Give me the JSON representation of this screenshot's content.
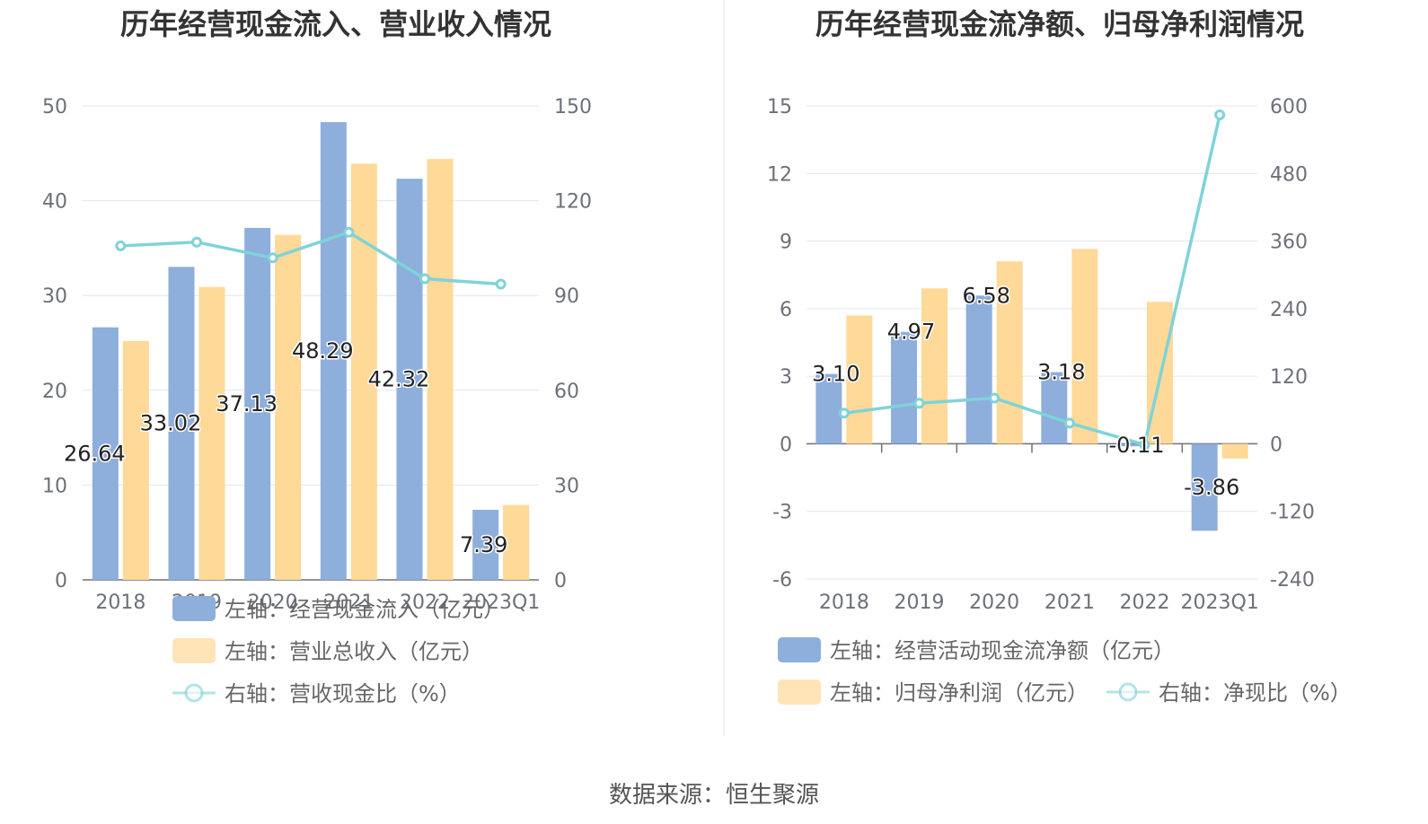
{
  "source": "数据来源：恒生聚源",
  "chart_data": [
    {
      "type": "bar",
      "title": "历年经营现金流入、营业收入情况",
      "categories": [
        "2018",
        "2019",
        "2020",
        "2021",
        "2022",
        "2023Q1"
      ],
      "left_axis": {
        "min": 0,
        "max": 50,
        "ticks": [
          "0",
          "10",
          "20",
          "30",
          "40",
          "50"
        ]
      },
      "right_axis": {
        "min": 0,
        "max": 150,
        "ticks": [
          "0",
          "30",
          "60",
          "90",
          "120",
          "150"
        ]
      },
      "grid": true,
      "legend_position": "bottom",
      "series": [
        {
          "name": "左轴：经营现金流入（亿元）",
          "kind": "bar",
          "axis": "left",
          "color": "#8eaedb",
          "values": [
            26.64,
            33.02,
            37.13,
            48.29,
            42.32,
            7.39
          ],
          "labels": [
            "26.64",
            "33.02",
            "37.13",
            "48.29",
            "42.32",
            "7.39"
          ]
        },
        {
          "name": "左轴：营业总收入（亿元）",
          "kind": "bar",
          "axis": "left",
          "color": "#fed998",
          "values": [
            25.2,
            30.9,
            36.4,
            43.9,
            44.4,
            7.9
          ]
        },
        {
          "name": "右轴：营收现金比（%）",
          "kind": "line",
          "axis": "right",
          "color": "#7fd3d8",
          "values": [
            105.7,
            106.9,
            101.9,
            110.0,
            95.3,
            93.6
          ]
        }
      ]
    },
    {
      "type": "bar",
      "title": "历年经营现金流净额、归母净利润情况",
      "categories": [
        "2018",
        "2019",
        "2020",
        "2021",
        "2022",
        "2023Q1"
      ],
      "left_axis": {
        "min": -6,
        "max": 15,
        "ticks": [
          "-6",
          "-3",
          "0",
          "3",
          "6",
          "9",
          "12",
          "15"
        ]
      },
      "right_axis": {
        "min": -240,
        "max": 600,
        "ticks": [
          "-240",
          "-120",
          "0",
          "120",
          "240",
          "360",
          "480",
          "600"
        ]
      },
      "grid": true,
      "legend_position": "bottom",
      "series": [
        {
          "name": "左轴：经营活动现金流净额（亿元）",
          "kind": "bar",
          "axis": "left",
          "color": "#8eaedb",
          "values": [
            3.1,
            4.97,
            6.58,
            3.18,
            -0.11,
            -3.86
          ],
          "labels": [
            "3.10",
            "4.97",
            "6.58",
            "3.18",
            "-0.11",
            "-3.86"
          ]
        },
        {
          "name": "左轴：归母净利润（亿元）",
          "kind": "bar",
          "axis": "left",
          "color": "#fed998",
          "values": [
            5.7,
            6.9,
            8.1,
            8.65,
            6.3,
            -0.65
          ]
        },
        {
          "name": "右轴：净现比（%）",
          "kind": "line",
          "axis": "right",
          "color": "#7fd3d8",
          "values": [
            54.4,
            72.0,
            81.2,
            36.8,
            -1.7,
            584
          ]
        }
      ]
    }
  ]
}
